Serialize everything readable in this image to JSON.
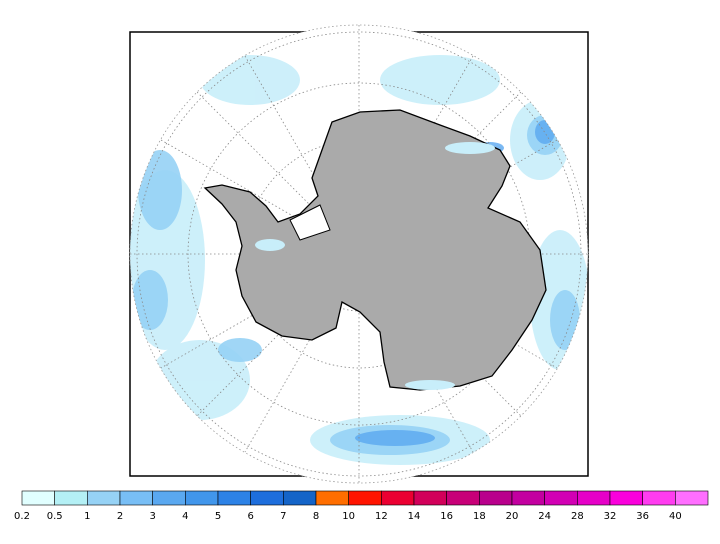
{
  "colorbar": {
    "levels": [
      0.2,
      0.5,
      1,
      2,
      3,
      4,
      5,
      6,
      7,
      8,
      10,
      12,
      14,
      16,
      18,
      20,
      24,
      28,
      32,
      36,
      40
    ],
    "colors": [
      "#e1ffff",
      "#b4f0f5",
      "#96d2f5",
      "#78bef5",
      "#5aa8f0",
      "#4196eb",
      "#2d82e6",
      "#1e6edc",
      "#1464c8",
      "#ff6e00",
      "#ff1400",
      "#eb0032",
      "#d2005a",
      "#c80078",
      "#b9008c",
      "#c300a0",
      "#d200b4",
      "#e600c8",
      "#fa00dc",
      "#ff3cf0",
      "#ff6eff"
    ]
  }
}
